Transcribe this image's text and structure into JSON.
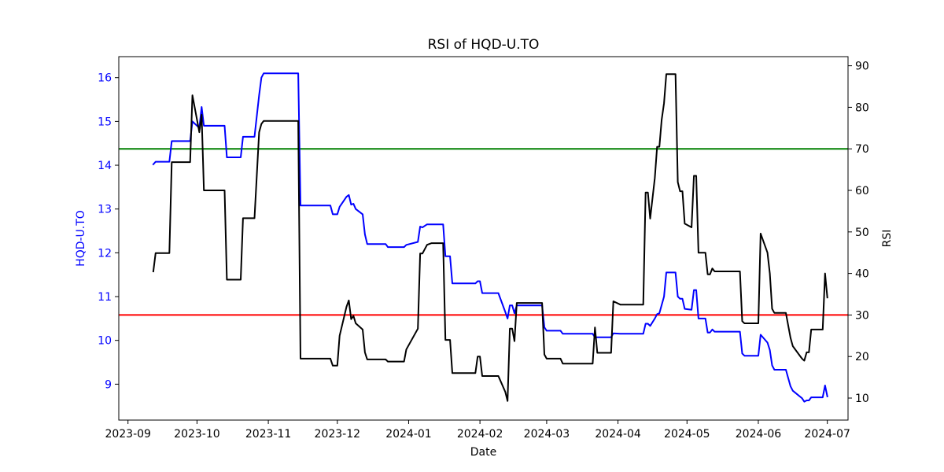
{
  "chart_data": {
    "type": "line",
    "title": "RSI of HQD-U.TO",
    "xlabel": "Date",
    "ylabel_left": "HQD-U.TO",
    "ylabel_right": "RSI",
    "x_ticks": [
      "2023-09",
      "2023-10",
      "2023-11",
      "2023-12",
      "2024-01",
      "2024-02",
      "2024-03",
      "2024-04",
      "2024-05",
      "2024-06",
      "2024-07"
    ],
    "y_left_ticks": [
      "9",
      "10",
      "11",
      "12",
      "13",
      "14",
      "15",
      "16"
    ],
    "y_right_ticks": [
      "10",
      "20",
      "30",
      "40",
      "50",
      "60",
      "70",
      "80",
      "90"
    ],
    "xlim": [
      "2023-08-28",
      "2024-07-10"
    ],
    "ylim_left": [
      8.18,
      16.48
    ],
    "ylim_right": [
      4.7,
      92.2
    ],
    "hlines": [
      {
        "axis": "right",
        "value": 70,
        "color": "#008000"
      },
      {
        "axis": "right",
        "value": 30,
        "color": "#ff0000"
      }
    ],
    "series": [
      {
        "axis": "left",
        "color": "#0000ff",
        "points": [
          [
            "2023-09-12",
            14.02
          ],
          [
            "2023-09-13",
            14.08
          ],
          [
            "2023-09-19",
            14.08
          ],
          [
            "2023-09-20",
            14.55
          ],
          [
            "2023-09-28",
            14.55
          ],
          [
            "2023-09-29",
            15.0
          ],
          [
            "2023-10-02",
            14.85
          ],
          [
            "2023-10-03",
            15.33
          ],
          [
            "2023-10-04",
            14.9
          ],
          [
            "2023-10-13",
            14.9
          ],
          [
            "2023-10-14",
            14.18
          ],
          [
            "2023-10-20",
            14.18
          ],
          [
            "2023-10-21",
            14.65
          ],
          [
            "2023-10-26",
            14.65
          ],
          [
            "2023-10-28",
            15.6
          ],
          [
            "2023-10-29",
            16.0
          ],
          [
            "2023-10-30",
            16.1
          ],
          [
            "2023-11-14",
            16.1
          ],
          [
            "2023-11-15",
            13.08
          ],
          [
            "2023-11-28",
            13.08
          ],
          [
            "2023-11-29",
            12.88
          ],
          [
            "2023-12-01",
            12.88
          ],
          [
            "2023-12-02",
            13.05
          ],
          [
            "2023-12-05",
            13.28
          ],
          [
            "2023-12-06",
            13.32
          ],
          [
            "2023-12-07",
            13.1
          ],
          [
            "2023-12-08",
            13.12
          ],
          [
            "2023-12-09",
            13.0
          ],
          [
            "2023-12-12",
            12.88
          ],
          [
            "2023-12-13",
            12.42
          ],
          [
            "2023-12-14",
            12.2
          ],
          [
            "2023-12-15",
            12.2
          ],
          [
            "2023-12-22",
            12.2
          ],
          [
            "2023-12-23",
            12.13
          ],
          [
            "2023-12-30",
            12.13
          ],
          [
            "2023-12-31",
            12.18
          ],
          [
            "2024-01-05",
            12.25
          ],
          [
            "2024-01-06",
            12.6
          ],
          [
            "2024-01-07",
            12.58
          ],
          [
            "2024-01-09",
            12.65
          ],
          [
            "2024-01-16",
            12.65
          ],
          [
            "2024-01-17",
            11.92
          ],
          [
            "2024-01-19",
            11.92
          ],
          [
            "2024-01-20",
            11.3
          ],
          [
            "2024-01-30",
            11.3
          ],
          [
            "2024-01-31",
            11.35
          ],
          [
            "2024-02-01",
            11.35
          ],
          [
            "2024-02-02",
            11.08
          ],
          [
            "2024-02-09",
            11.08
          ],
          [
            "2024-02-12",
            10.65
          ],
          [
            "2024-02-13",
            10.5
          ],
          [
            "2024-02-14",
            10.8
          ],
          [
            "2024-02-15",
            10.8
          ],
          [
            "2024-02-16",
            10.62
          ],
          [
            "2024-02-17",
            10.8
          ],
          [
            "2024-02-28",
            10.8
          ],
          [
            "2024-02-29",
            10.3
          ],
          [
            "2024-03-01",
            10.22
          ],
          [
            "2024-03-07",
            10.22
          ],
          [
            "2024-03-08",
            10.15
          ],
          [
            "2024-03-21",
            10.15
          ],
          [
            "2024-03-22",
            10.07
          ],
          [
            "2024-03-29",
            10.07
          ],
          [
            "2024-03-30",
            10.16
          ],
          [
            "2024-04-02",
            10.15
          ],
          [
            "2024-04-12",
            10.15
          ],
          [
            "2024-04-13",
            10.38
          ],
          [
            "2024-04-14",
            10.38
          ],
          [
            "2024-04-15",
            10.33
          ],
          [
            "2024-04-17",
            10.5
          ],
          [
            "2024-04-18",
            10.6
          ],
          [
            "2024-04-19",
            10.62
          ],
          [
            "2024-04-21",
            11.0
          ],
          [
            "2024-04-22",
            11.55
          ],
          [
            "2024-04-26",
            11.55
          ],
          [
            "2024-04-27",
            11.0
          ],
          [
            "2024-04-28",
            10.95
          ],
          [
            "2024-04-29",
            10.95
          ],
          [
            "2024-04-30",
            10.72
          ],
          [
            "2024-05-03",
            10.7
          ],
          [
            "2024-05-04",
            11.15
          ],
          [
            "2024-05-05",
            11.15
          ],
          [
            "2024-05-06",
            10.5
          ],
          [
            "2024-05-09",
            10.5
          ],
          [
            "2024-05-10",
            10.18
          ],
          [
            "2024-05-11",
            10.18
          ],
          [
            "2024-05-12",
            10.25
          ],
          [
            "2024-05-13",
            10.2
          ],
          [
            "2024-05-24",
            10.2
          ],
          [
            "2024-05-25",
            9.7
          ],
          [
            "2024-05-26",
            9.65
          ],
          [
            "2024-06-01",
            9.65
          ],
          [
            "2024-06-02",
            10.13
          ],
          [
            "2024-06-05",
            9.95
          ],
          [
            "2024-06-06",
            9.78
          ],
          [
            "2024-06-07",
            9.43
          ],
          [
            "2024-06-08",
            9.33
          ],
          [
            "2024-06-13",
            9.33
          ],
          [
            "2024-06-15",
            8.95
          ],
          [
            "2024-06-16",
            8.85
          ],
          [
            "2024-06-20",
            8.68
          ],
          [
            "2024-06-21",
            8.6
          ],
          [
            "2024-06-22",
            8.63
          ],
          [
            "2024-06-23",
            8.63
          ],
          [
            "2024-06-24",
            8.7
          ],
          [
            "2024-06-29",
            8.7
          ],
          [
            "2024-06-30",
            8.97
          ],
          [
            "2024-07-01",
            8.72
          ]
        ]
      },
      {
        "axis": "right",
        "color": "#000000",
        "points": [
          [
            "2023-09-12",
            40.5
          ],
          [
            "2023-09-13",
            44.9
          ],
          [
            "2023-09-19",
            44.9
          ],
          [
            "2023-09-20",
            66.8
          ],
          [
            "2023-09-28",
            66.8
          ],
          [
            "2023-09-29",
            82.9
          ],
          [
            "2023-10-02",
            74.0
          ],
          [
            "2023-10-03",
            78.2
          ],
          [
            "2023-10-04",
            60.0
          ],
          [
            "2023-10-13",
            60.0
          ],
          [
            "2023-10-14",
            38.5
          ],
          [
            "2023-10-20",
            38.5
          ],
          [
            "2023-10-21",
            53.3
          ],
          [
            "2023-10-26",
            53.3
          ],
          [
            "2023-10-28",
            74.0
          ],
          [
            "2023-10-29",
            76.0
          ],
          [
            "2023-10-30",
            76.7
          ],
          [
            "2023-11-14",
            76.7
          ],
          [
            "2023-11-15",
            19.5
          ],
          [
            "2023-11-28",
            19.5
          ],
          [
            "2023-11-29",
            17.8
          ],
          [
            "2023-12-01",
            17.8
          ],
          [
            "2023-12-02",
            25.0
          ],
          [
            "2023-12-05",
            32.0
          ],
          [
            "2023-12-06",
            33.5
          ],
          [
            "2023-12-07",
            29.0
          ],
          [
            "2023-12-08",
            29.8
          ],
          [
            "2023-12-09",
            28.0
          ],
          [
            "2023-12-12",
            26.5
          ],
          [
            "2023-12-13",
            21.0
          ],
          [
            "2023-12-14",
            19.3
          ],
          [
            "2023-12-15",
            19.3
          ],
          [
            "2023-12-22",
            19.3
          ],
          [
            "2023-12-23",
            18.8
          ],
          [
            "2023-12-30",
            18.8
          ],
          [
            "2023-12-31",
            21.7
          ],
          [
            "2024-01-05",
            26.7
          ],
          [
            "2024-01-06",
            44.8
          ],
          [
            "2024-01-07",
            44.8
          ],
          [
            "2024-01-09",
            46.9
          ],
          [
            "2024-01-11",
            47.3
          ],
          [
            "2024-01-16",
            47.3
          ],
          [
            "2024-01-17",
            24.0
          ],
          [
            "2024-01-19",
            24.0
          ],
          [
            "2024-01-20",
            16.0
          ],
          [
            "2024-01-30",
            16.0
          ],
          [
            "2024-01-31",
            20.0
          ],
          [
            "2024-02-01",
            20.0
          ],
          [
            "2024-02-02",
            15.3
          ],
          [
            "2024-02-09",
            15.3
          ],
          [
            "2024-02-12",
            11.5
          ],
          [
            "2024-02-13",
            9.3
          ],
          [
            "2024-02-14",
            26.7
          ],
          [
            "2024-02-15",
            26.7
          ],
          [
            "2024-02-16",
            23.7
          ],
          [
            "2024-02-17",
            32.9
          ],
          [
            "2024-02-28",
            32.9
          ],
          [
            "2024-02-29",
            20.5
          ],
          [
            "2024-03-01",
            19.5
          ],
          [
            "2024-03-07",
            19.5
          ],
          [
            "2024-03-08",
            18.3
          ],
          [
            "2024-03-21",
            18.3
          ],
          [
            "2024-03-22",
            27.0
          ],
          [
            "2024-03-23",
            20.9
          ],
          [
            "2024-03-29",
            20.9
          ],
          [
            "2024-03-30",
            33.3
          ],
          [
            "2024-04-02",
            32.5
          ],
          [
            "2024-04-12",
            32.5
          ],
          [
            "2024-04-13",
            59.5
          ],
          [
            "2024-04-14",
            59.5
          ],
          [
            "2024-04-15",
            53.2
          ],
          [
            "2024-04-17",
            63.0
          ],
          [
            "2024-04-18",
            70.5
          ],
          [
            "2024-04-19",
            70.5
          ],
          [
            "2024-04-20",
            77.0
          ],
          [
            "2024-04-21",
            81.0
          ],
          [
            "2024-04-22",
            88.0
          ],
          [
            "2024-04-26",
            88.0
          ],
          [
            "2024-04-27",
            62.0
          ],
          [
            "2024-04-28",
            59.8
          ],
          [
            "2024-04-29",
            59.8
          ],
          [
            "2024-04-30",
            52.0
          ],
          [
            "2024-05-03",
            51.1
          ],
          [
            "2024-05-04",
            63.5
          ],
          [
            "2024-05-05",
            63.5
          ],
          [
            "2024-05-06",
            45.0
          ],
          [
            "2024-05-09",
            45.0
          ],
          [
            "2024-05-10",
            39.8
          ],
          [
            "2024-05-11",
            39.8
          ],
          [
            "2024-05-12",
            41.2
          ],
          [
            "2024-05-13",
            40.5
          ],
          [
            "2024-05-24",
            40.5
          ],
          [
            "2024-05-25",
            28.5
          ],
          [
            "2024-05-26",
            28.0
          ],
          [
            "2024-06-01",
            28.0
          ],
          [
            "2024-06-02",
            49.6
          ],
          [
            "2024-06-05",
            45.0
          ],
          [
            "2024-06-06",
            40.0
          ],
          [
            "2024-06-07",
            31.5
          ],
          [
            "2024-06-08",
            30.5
          ],
          [
            "2024-06-13",
            30.5
          ],
          [
            "2024-06-15",
            24.5
          ],
          [
            "2024-06-16",
            22.5
          ],
          [
            "2024-06-20",
            19.5
          ],
          [
            "2024-06-21",
            19.0
          ],
          [
            "2024-06-22",
            21.0
          ],
          [
            "2024-06-23",
            21.0
          ],
          [
            "2024-06-24",
            26.5
          ],
          [
            "2024-06-29",
            26.5
          ],
          [
            "2024-06-30",
            40.0
          ],
          [
            "2024-07-01",
            34.2
          ]
        ]
      }
    ]
  }
}
